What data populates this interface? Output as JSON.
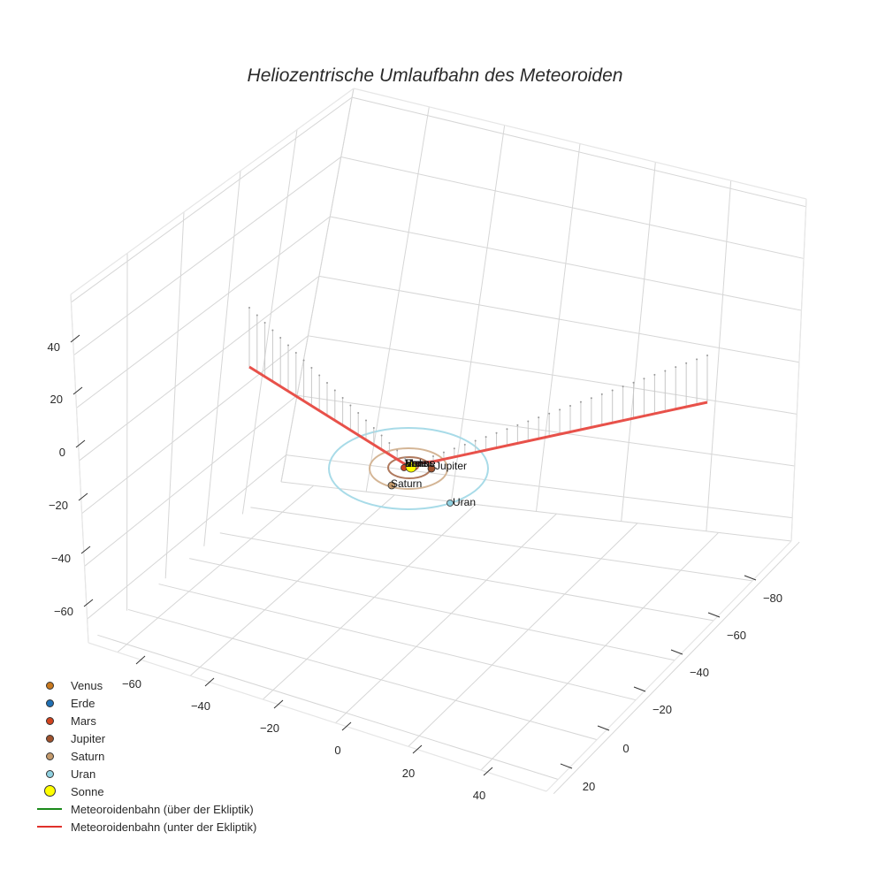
{
  "chart_data": {
    "type": "scatter3d",
    "title": "Heliozentrische Umlaufbahn des Meteoroiden",
    "axes": {
      "x": {
        "ticks": [
          -60,
          -40,
          -20,
          0,
          20,
          40
        ],
        "range": [
          -70,
          50
        ]
      },
      "y": {
        "ticks": [
          20,
          0,
          -20,
          -40,
          -60,
          -80
        ],
        "range": [
          -90,
          25
        ]
      },
      "z": {
        "ticks": [
          40,
          20,
          0,
          -20,
          -40,
          -60
        ],
        "range": [
          -70,
          50
        ]
      }
    },
    "grid": true,
    "legend_position": "bottom-left",
    "planets": [
      {
        "name": "Venus",
        "color": "#c8781e"
      },
      {
        "name": "Erde",
        "color": "#1f6fb4"
      },
      {
        "name": "Mars",
        "color": "#d2431e"
      },
      {
        "name": "Jupiter",
        "color": "#a0522d"
      },
      {
        "name": "Saturn",
        "color": "#c49a6c"
      },
      {
        "name": "Uran",
        "color": "#8fd0e0"
      },
      {
        "name": "Sonne",
        "color": "#ffff00"
      }
    ],
    "series": [
      {
        "name": "Meteoroidenbahn (über der Ekliptik)",
        "color": "#1a8a1a",
        "type": "line"
      },
      {
        "name": "Meteoroidenbahn (unter der Ekliptik)",
        "color": "#e0312b",
        "type": "line"
      }
    ],
    "annotations": [
      "Venus",
      "Erde",
      "Mars",
      "Jupiter",
      "Saturn",
      "Uran",
      "Sonne"
    ]
  },
  "title": "Heliozentrische Umlaufbahn des Meteoroiden",
  "z_ticks": [
    "40",
    "20",
    "0",
    "−20",
    "−40",
    "−60"
  ],
  "x_ticks": [
    "−60",
    "−40",
    "−20",
    "0",
    "20",
    "40"
  ],
  "y_ticks": [
    "−80",
    "−60",
    "−40",
    "−20",
    "0",
    "20"
  ],
  "labels": {
    "jupiter": "Jupiter",
    "saturn": "Saturn",
    "uran": "Uran",
    "overlap": "Venus Erde Mars Sonne"
  },
  "legend": [
    {
      "label": "Venus",
      "kind": "dot",
      "color": "#c8781e"
    },
    {
      "label": "Erde",
      "kind": "dot",
      "color": "#1f6fb4"
    },
    {
      "label": "Mars",
      "kind": "dot",
      "color": "#d2431e"
    },
    {
      "label": "Jupiter",
      "kind": "dot",
      "color": "#a0522d"
    },
    {
      "label": "Saturn",
      "kind": "dot",
      "color": "#c49a6c"
    },
    {
      "label": "Uran",
      "kind": "dot",
      "color": "#8fd0e0"
    },
    {
      "label": "Sonne",
      "kind": "bigdot",
      "color": "#ffff00"
    },
    {
      "label": "Meteoroidenbahn (über der Ekliptik)",
      "kind": "line",
      "color": "#1a8a1a"
    },
    {
      "label": "Meteoroidenbahn (unter der Ekliptik)",
      "kind": "line",
      "color": "#e0312b"
    }
  ]
}
